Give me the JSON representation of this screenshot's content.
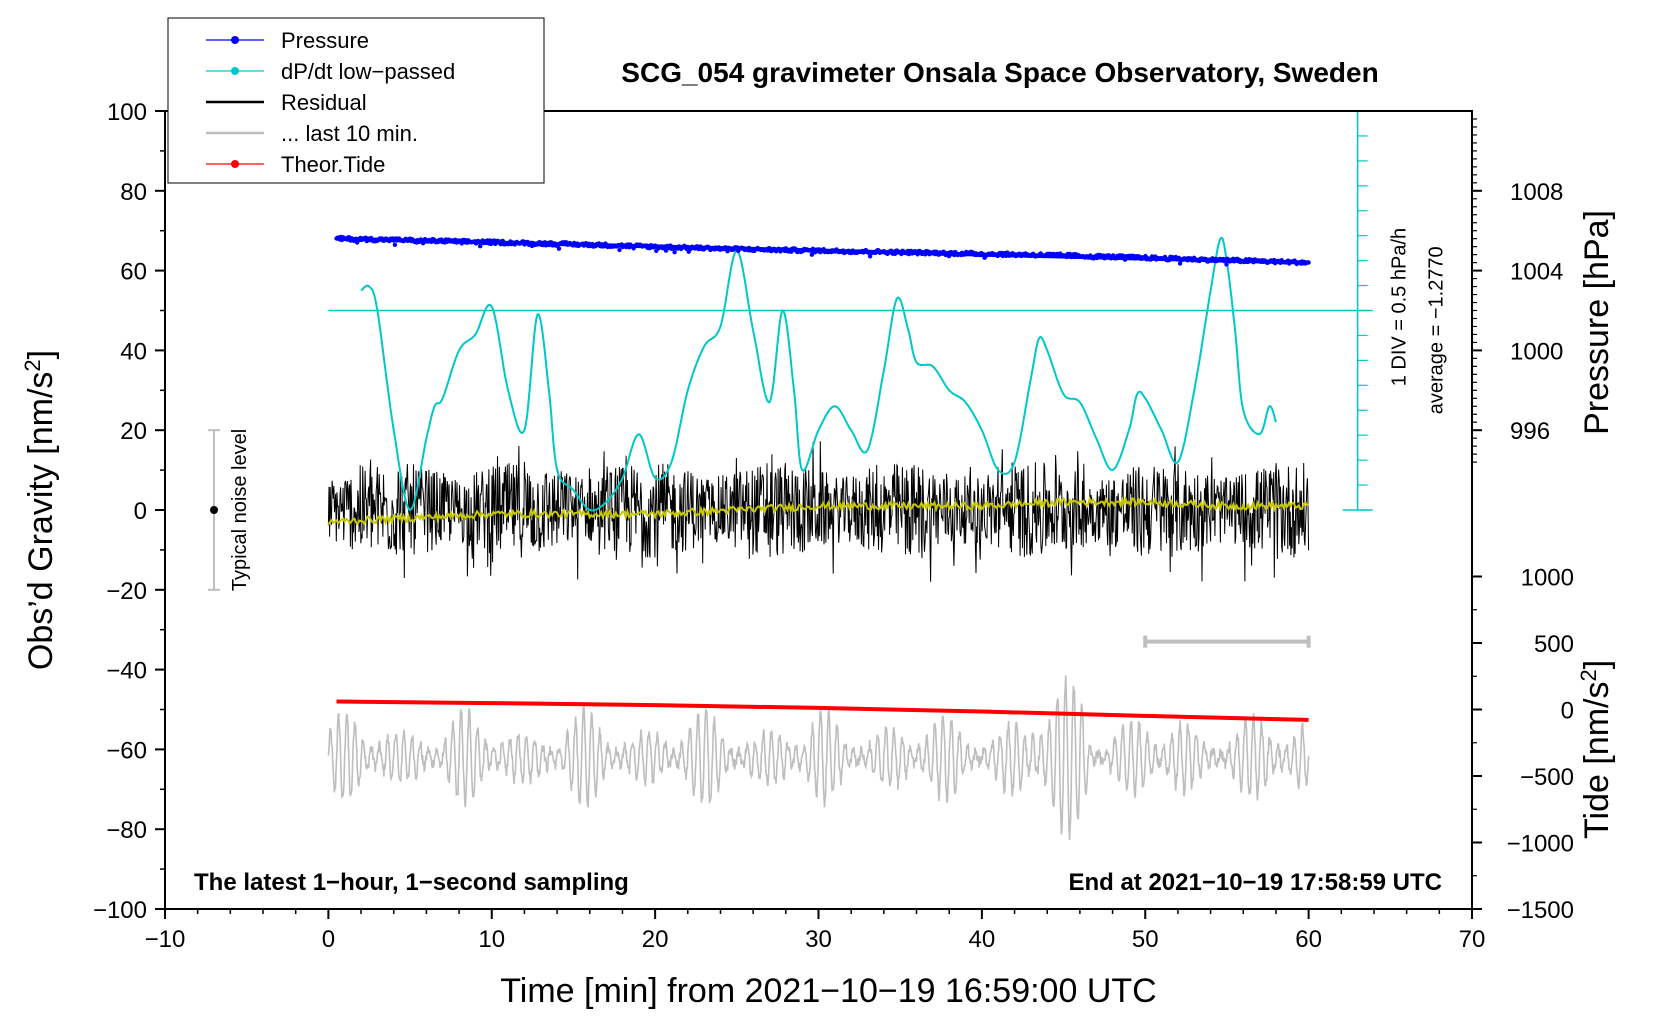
{
  "chart_data": {
    "type": "line",
    "title": "SCG_054 gravimeter Onsala Space Observatory, Sweden",
    "xlabel": "Time [min] from 2021−10−19 16:59:00 UTC",
    "ylabel_left": "Obs’d Gravity [nm/s",
    "ylabel_left_sup": "2",
    "ylabel_left_end": "]",
    "ylabel_pressure": "Pressure [hPa]",
    "ylabel_tide": "Tide [nm/s",
    "ylabel_tide_sup": "2",
    "ylabel_tide_end": "]",
    "xlim": [
      -10,
      70
    ],
    "ylim": [
      -100,
      100
    ],
    "x_ticks": [
      -10,
      0,
      10,
      20,
      30,
      40,
      50,
      60,
      70
    ],
    "x_tick_labels": [
      "−10",
      "0",
      "10",
      "20",
      "30",
      "40",
      "50",
      "60",
      "70"
    ],
    "y_ticks": [
      -100,
      -80,
      -60,
      -40,
      -20,
      0,
      20,
      40,
      60,
      80,
      100
    ],
    "y_tick_labels": [
      "−100",
      "−80",
      "−60",
      "−40",
      "−20",
      "0",
      "20",
      "40",
      "60",
      "80",
      "100"
    ],
    "pressure_axis": {
      "ticks": [
        996,
        1000,
        1004,
        1008
      ],
      "labels": [
        "996",
        "1000",
        "1004",
        "1008"
      ],
      "maps_to_gravity": [
        20,
        40,
        60,
        80
      ]
    },
    "tide_axis": {
      "ticks": [
        -1500,
        -1000,
        -500,
        0,
        500,
        1000
      ],
      "labels": [
        "−1500",
        "−1000",
        "−500",
        "0",
        "500",
        "1000"
      ],
      "maps_to_gravity": [
        -100,
        -83.33,
        -66.67,
        -50,
        -33.33,
        -16.67
      ]
    },
    "legend": [
      {
        "name": "Pressure",
        "color": "#0000ff",
        "style": "line-dots"
      },
      {
        "name": "dP/dt low−passed",
        "color": "#00c8c8",
        "style": "line-dots"
      },
      {
        "name": "Residual",
        "color": "#000000",
        "style": "line"
      },
      {
        "name": "... last 10 min.",
        "color": "#bebebe",
        "style": "line"
      },
      {
        "name": "Theor.Tide",
        "color": "#ff0000",
        "style": "line-dots"
      }
    ],
    "series": [
      {
        "name": "Pressure",
        "color": "#0000ff",
        "x": [
          0.5,
          5,
          10,
          15,
          20,
          25,
          30,
          35,
          40,
          45,
          50,
          55,
          60
        ],
        "y": [
          68,
          67.6,
          67.1,
          66.6,
          66,
          65.4,
          65,
          64.6,
          64.2,
          63.8,
          63.2,
          62.6,
          62
        ]
      },
      {
        "name": "dP/dt low−passed",
        "color": "#00c8c8",
        "x": [
          2,
          2.5,
          3,
          4,
          5,
          6,
          6.5,
          7,
          8,
          9,
          10,
          11,
          12,
          12.8,
          13.5,
          14,
          15,
          16,
          17,
          18,
          19,
          20,
          21,
          22,
          23,
          24,
          25,
          26,
          27,
          27.8,
          28.5,
          29,
          30,
          31,
          32,
          33,
          34,
          34.8,
          35.5,
          36,
          37,
          38,
          39,
          40,
          41,
          42,
          43,
          43.5,
          44,
          45,
          46,
          47,
          48,
          49,
          49.5,
          50,
          51,
          52,
          53,
          54,
          54.6,
          55,
          55.5,
          56,
          57,
          57.6,
          58
        ],
        "y": [
          55,
          56,
          50,
          20,
          0,
          18,
          26,
          28,
          40,
          44,
          51,
          30,
          20,
          49,
          30,
          10,
          5,
          0,
          2,
          8,
          19,
          8,
          12,
          30,
          41,
          46,
          65,
          45,
          27,
          50,
          30,
          10,
          20,
          26,
          20,
          15,
          35,
          53,
          45,
          37,
          36,
          30,
          27,
          20,
          10,
          12,
          33,
          43,
          40,
          29,
          27,
          18,
          10,
          20,
          29,
          28,
          20,
          12,
          30,
          55,
          68,
          62,
          45,
          25,
          19,
          26,
          22
        ]
      },
      {
        "name": "Residual",
        "color": "#000000",
        "x_range": [
          0,
          60
        ],
        "envelope": [
          -27,
          22
        ],
        "style": "noise"
      },
      {
        "name": "Residual (smoothed)",
        "color": "#c8c800",
        "x": [
          0,
          5,
          10,
          15,
          20,
          25,
          30,
          35,
          40,
          45,
          50,
          55,
          60
        ],
        "y": [
          -3,
          -2,
          -1,
          -1,
          -1,
          0,
          1,
          1,
          1,
          2,
          2,
          1,
          1
        ]
      },
      {
        "name": "... last 10 min.",
        "color": "#bebebe",
        "x_range": [
          0,
          60
        ],
        "center": -62,
        "envelope": [
          -86,
          -36
        ],
        "style": "oscillation"
      },
      {
        "name": "Theor.Tide",
        "color": "#ff0000",
        "x": [
          0.5,
          10,
          20,
          30,
          40,
          50,
          60
        ],
        "y": [
          -48,
          -48.4,
          -48.9,
          -49.6,
          -50.5,
          -51.6,
          -52.6
        ]
      }
    ],
    "pressure_scale_bar": {
      "label_1": "1 DIV = 0.5 hPa/h",
      "label_2": "average = −1.2770",
      "x": 63,
      "y_range": [
        0,
        100
      ],
      "reference_y": 50
    },
    "noise_level_bar": {
      "label": "Typical noise level",
      "x": -7,
      "y_range": [
        -20,
        20
      ],
      "center": 0
    },
    "last_10min_bar": {
      "x_range": [
        50,
        60
      ],
      "y": -33
    },
    "annotations": {
      "bottom_left": "The latest 1−hour, 1−second sampling",
      "bottom_right": "End at 2021−10−19 17:58:59 UTC"
    }
  }
}
